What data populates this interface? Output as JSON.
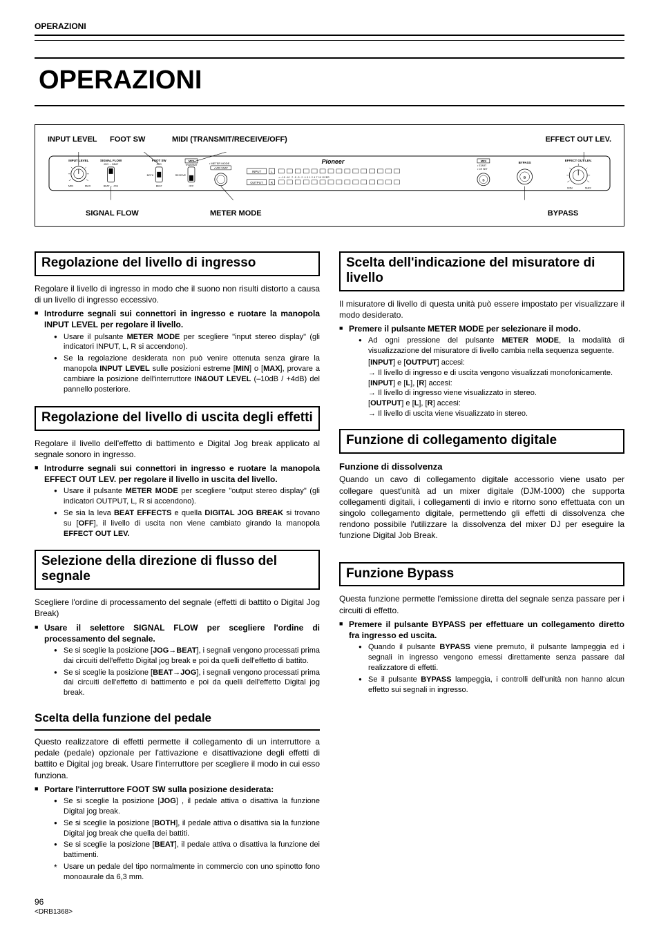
{
  "header": "OPERAZIONI",
  "title": "OPERAZIONI",
  "panel": {
    "top_labels": {
      "input_level": "INPUT LEVEL",
      "foot_sw": "FOOT SW",
      "midi": "MIDI (TRANSMIT/RECEIVE/OFF)",
      "effect_out": "EFFECT OUT LEV."
    },
    "bot_labels": {
      "signal_flow": "SIGNAL FLOW",
      "meter_mode": "METER MODE",
      "bypass": "BYPASS"
    },
    "svg_text": {
      "input_level": "INPUT LEVEL",
      "signal_flow": "SIGNAL FLOW",
      "foot_sw": "FOOT SW",
      "midi_box": "MIDI",
      "transmit": "TRANSMIT",
      "receive": "RECEIVE",
      "off": "OFF",
      "jog_beat": "JOG → BEAT",
      "beat_jog": "BEAT → JOG",
      "jog": "JOG",
      "both": "BOTH",
      "beat": "BEAT",
      "min": "MIN",
      "max": "MAX",
      "meter_mode_dot": "• METER MODE",
      "midi_snap": "• MIDI SNAP",
      "input_box": "INPUT",
      "output_box": "OUTPUT",
      "l": "L",
      "r": "R",
      "scale": "∞  -15  -10  -7   -5   -3   -2   -1    0    1    2    4    7   10  OVER",
      "brand": "Pioneer",
      "midi2": "MIDI",
      "start": "• START",
      "chset": "• CH SET",
      "s": "S",
      "bypass": "BYPASS",
      "b": "B",
      "effect_out": "EFFECT OUT LEV."
    }
  },
  "left": {
    "s1": {
      "h": "Regolazione del livello di ingresso",
      "p": "Regolare il livello di ingresso in modo che il suono non risulti distorto a causa di un livello di ingresso eccessivo.",
      "li": "Introdurre segnali sui connettori in ingresso e ruotare la manopola INPUT LEVEL per regolare il livello.",
      "b1": "Usare il pulsante <b>METER MODE</b> per scegliere \"input stereo display\" (gli indicatori INPUT, L, R si accendono).",
      "b2": "Se la regolazione desiderata non può venire ottenuta senza girare la manopola <b>INPUT LEVEL</b> sulle posizioni estreme [<b>MIN</b>] o [<b>MAX</b>], provare a cambiare la posizione dell'interruttore <b>IN&OUT LEVEL</b> (–10dB / +4dB) del pannello posteriore."
    },
    "s2": {
      "h": "Regolazione del livello di uscita degli effetti",
      "p": "Regolare il livello dell'effetto di battimento e Digital Jog break applicato al segnale sonoro in ingresso.",
      "li": "Introdurre segnali sui connettori in ingresso e ruotare la manopola EFFECT OUT LEV. per regolare il livello in uscita del livello.",
      "b1": "Usare il pulsante <b>METER MODE</b> per scegliere \"output stereo display\" (gli indicatori OUTPUT, L, R si accendono).",
      "b2": "Se sia la leva <b>BEAT EFFECTS</b> e quella <b>DIGITAL JOG BREAK</b> si trovano su [<b>OFF</b>], il livello di uscita non viene cambiato girando la manopola <b>EFFECT OUT LEV.</b>"
    },
    "s3": {
      "h": "Selezione della direzione di flusso del segnale",
      "p": "Scegliere l'ordine di processamento del segnale (effetti di battito o Digital Jog Break)",
      "li": "Usare il selettore SIGNAL FLOW per scegliere l'ordine di processamento del segnale.",
      "b1": "Se si sceglie la posizione [<b>JOG→BEAT</b>], i segnali vengono processati prima dai circuiti dell'effetto Digital jog break e poi da quelli dell'effetto di battito.",
      "b2": "Se si sceglie la posizione [<b>BEAT→JOG</b>], i segnali vengono processati prima dai circuiti dell'effetto di battimento e poi da quelli dell'effetto Digital jog break."
    },
    "s4": {
      "h": "Scelta della funzione del pedale",
      "p": "Questo realizzatore di effetti permette il collegamento di un interruttore a pedale (pedale) opzionale per l'attivazione e disattivazione degli effetti di battito e Digital jog break. Usare l'interruttore per scegliere il modo in cui esso funziona.",
      "li": "Portare l'interruttore FOOT SW sulla posizione desiderata:",
      "b1": "Se si sceglie la posizione [<b>JOG</b>] , il pedale attiva o disattiva la funzione Digital jog break.",
      "b2": "Se si sceglie la posizione [<b>BOTH</b>], il pedale attiva o disattiva sia la funzione Digital jog break che quella dei battiti.",
      "b3": "Se si sceglie la posizione [<b>BEAT</b>], il pedale attiva o disattiva la funzione dei battimenti.",
      "b4": "Usare un pedale del tipo normalmente in commercio con uno spinotto fono monoaurale da 6,3 mm."
    }
  },
  "right": {
    "s1": {
      "h": "Scelta dell'indicazione del misuratore di livello",
      "p": "Il misuratore di livello di questa unità può essere impostato per visualizzare il modo desiderato.",
      "li": "Premere il pulsante METER MODE per selezionare il modo.",
      "b1": "Ad ogni pressione del pulsante <b>METER MODE</b>, la modalità di visualizzazione del misuratore di livello cambia nella sequenza seguente.",
      "r1a": "[<b>INPUT</b>] e [<b>OUTPUT</b>] accesi:",
      "r1b": "Il livello di ingresso e di uscita vengono visualizzati monofonicamente.",
      "r2a": "[<b>INPUT</b>] e [<b>L</b>], [<b>R</b>] accesi:",
      "r2b": "Il livello di ingresso viene visualizzato in stereo.",
      "r3a": "[<b>OUTPUT</b>] e [<b>L</b>], [<b>R</b>] accesi:",
      "r3b": "Il livello di uscita viene visualizzato in stereo."
    },
    "s2": {
      "h": "Funzione di collegamento digitale",
      "sub": "Funzione di dissolvenza",
      "p": "Quando un cavo di collegamento digitale accessorio viene usato per collegare quest'unità ad un mixer digitale (DJM-1000) che supporta collegamenti digitali, i collegamenti di invio e ritorno sono effettuata con un singolo collegamento digitale, permettendo gli effetti di dissolvenza che rendono possibile l'utilizzare la dissolvenza del mixer DJ per eseguire la funzione Digital Job Break."
    },
    "s3": {
      "h": "Funzione Bypass",
      "p": "Questa funzione permette l'emissione diretta del segnale senza passare per i circuiti di effetto.",
      "li": "Premere il pulsante BYPASS per effettuare un collegamento diretto fra ingresso ed uscita.",
      "b1": "Quando il pulsante <b>BYPASS</b> viene premuto, il pulsante lampeggia ed i segnali in ingresso vengono emessi direttamente senza passare dal realizzatore di effetti.",
      "b2": "Se il pulsante <b>BYPASS</b> lampeggia, i controlli dell'unità non hanno alcun effetto sui segnali in ingresso."
    }
  },
  "footer": {
    "page": "96",
    "code": "<DRB1368>"
  }
}
